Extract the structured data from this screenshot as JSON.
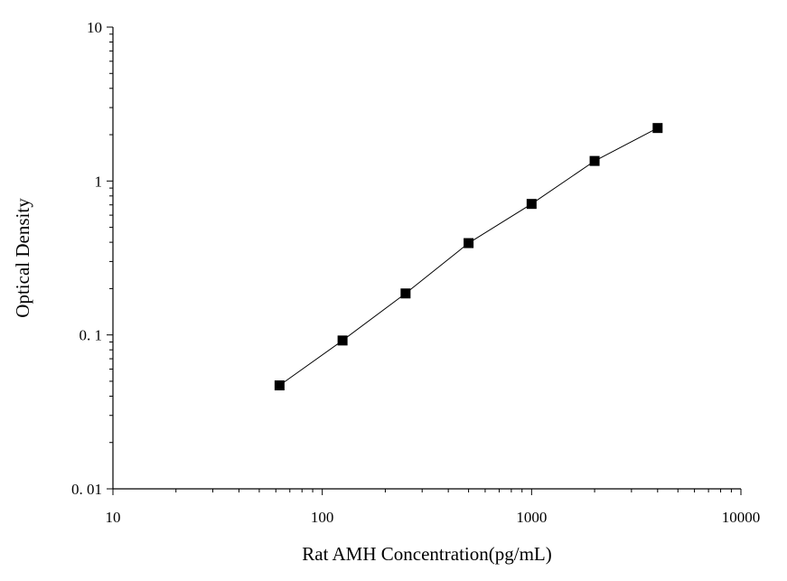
{
  "chart_data": {
    "type": "line",
    "xlabel": "Rat AMH Concentration(pg/mL)",
    "ylabel": "Optical Density",
    "x_scale": "log",
    "y_scale": "log",
    "xlim": [
      10,
      10000
    ],
    "ylim": [
      0.01,
      10
    ],
    "x_ticks": [
      {
        "value": 10,
        "label": "10"
      },
      {
        "value": 100,
        "label": "100"
      },
      {
        "value": 1000,
        "label": "1000"
      },
      {
        "value": 10000,
        "label": "10000"
      }
    ],
    "y_ticks": [
      {
        "value": 0.01,
        "label": "0. 01"
      },
      {
        "value": 0.1,
        "label": "0. 1"
      },
      {
        "value": 1,
        "label": "1"
      },
      {
        "value": 10,
        "label": "10"
      }
    ],
    "grid": false,
    "legend": false,
    "series": [
      {
        "marker": "square",
        "color": "#000000",
        "points": [
          {
            "x": 62.5,
            "y": 0.047
          },
          {
            "x": 125,
            "y": 0.092
          },
          {
            "x": 250,
            "y": 0.186
          },
          {
            "x": 500,
            "y": 0.395
          },
          {
            "x": 1000,
            "y": 0.71
          },
          {
            "x": 2000,
            "y": 1.35
          },
          {
            "x": 4000,
            "y": 2.21
          }
        ]
      }
    ]
  }
}
